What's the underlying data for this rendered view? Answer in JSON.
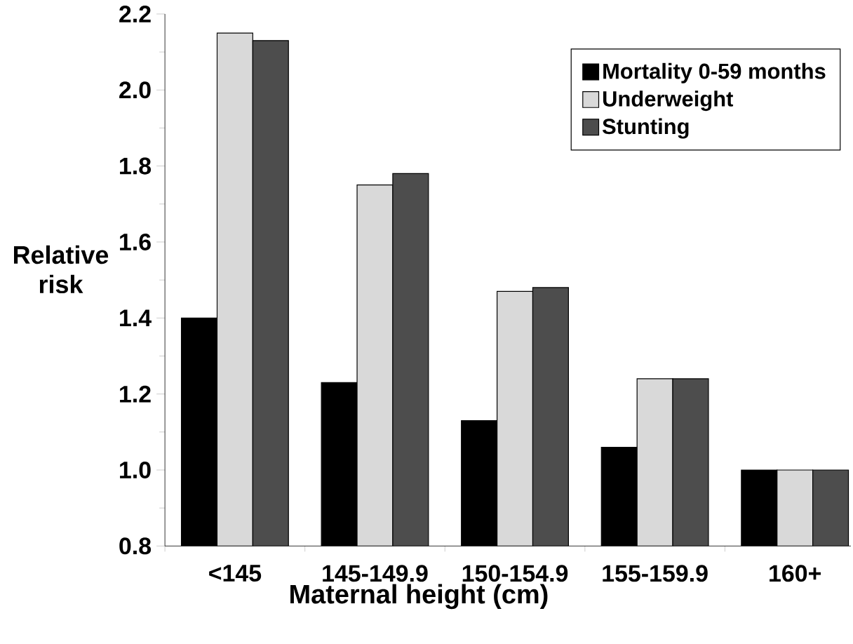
{
  "chart_data": {
    "type": "bar",
    "xlabel": "Maternal height (cm)",
    "ylabel": "Relative risk",
    "categories": [
      "<145",
      "145-149.9",
      "150-154.9",
      "155-159.9",
      "160+"
    ],
    "series": [
      {
        "name": "Mortality 0-59 months",
        "color": "#000000",
        "values": [
          1.4,
          1.23,
          1.13,
          1.06,
          1.0
        ]
      },
      {
        "name": "Underweight",
        "color": "#d9d9d9",
        "values": [
          2.15,
          1.75,
          1.47,
          1.24,
          1.0
        ]
      },
      {
        "name": "Stunting",
        "color": "#4d4d4d",
        "values": [
          2.13,
          1.78,
          1.48,
          1.24,
          1.0
        ]
      }
    ],
    "ylim": [
      0.8,
      2.2
    ],
    "yticks": [
      {
        "value": 0.8,
        "label": "0.8"
      },
      {
        "value": 1.0,
        "label": "1.0"
      },
      {
        "value": 1.2,
        "label": "1.2"
      },
      {
        "value": 1.4,
        "label": "1.4"
      },
      {
        "value": 1.6,
        "label": "1.6"
      },
      {
        "value": 1.8,
        "label": "1.8"
      },
      {
        "value": 2.0,
        "label": "2.0"
      },
      {
        "value": 2.2,
        "label": "2.2"
      }
    ],
    "legend": "top right"
  }
}
